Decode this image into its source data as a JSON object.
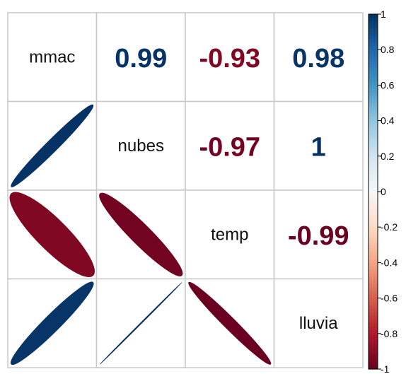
{
  "chart_data": {
    "type": "heatmap",
    "title": "",
    "variables": [
      "mmac",
      "nubes",
      "temp",
      "lluvia"
    ],
    "matrix": [
      [
        1,
        0.99,
        -0.93,
        0.98
      ],
      [
        0.99,
        1,
        -0.97,
        1
      ],
      [
        -0.93,
        -0.97,
        1,
        -0.99
      ],
      [
        0.98,
        1,
        -0.99,
        1
      ]
    ],
    "upper_labels": [
      {
        "row": 0,
        "col": 1,
        "text": "0.99"
      },
      {
        "row": 0,
        "col": 2,
        "text": "-0.93"
      },
      {
        "row": 0,
        "col": 3,
        "text": "0.98"
      },
      {
        "row": 1,
        "col": 2,
        "text": "-0.97"
      },
      {
        "row": 1,
        "col": 3,
        "text": "1"
      },
      {
        "row": 2,
        "col": 3,
        "text": "-0.99"
      }
    ],
    "lower_shape": "ellipse",
    "colorbar": {
      "range": [
        -1,
        1
      ],
      "ticks": [
        1,
        0.8,
        0.6,
        0.4,
        0.2,
        0,
        -0.2,
        -0.4,
        -0.6,
        -0.8,
        -1
      ],
      "tick_labels": [
        "1",
        "0.8",
        "0.6",
        "0.4",
        "0.2",
        "0",
        "-0.2",
        "-0.4",
        "-0.6",
        "-0.8",
        "-1"
      ],
      "placement": "right"
    },
    "colors": {
      "negative_end": "#67001f",
      "zero": "#f7f7f7",
      "positive_end": "#053061",
      "scale": [
        "#67001f",
        "#b2182b",
        "#d6604d",
        "#f4a582",
        "#fddbc7",
        "#f7f7f7",
        "#d1e5f0",
        "#92c5de",
        "#4393c3",
        "#2166ac",
        "#053061"
      ],
      "grid": "#c8c8c8"
    }
  }
}
